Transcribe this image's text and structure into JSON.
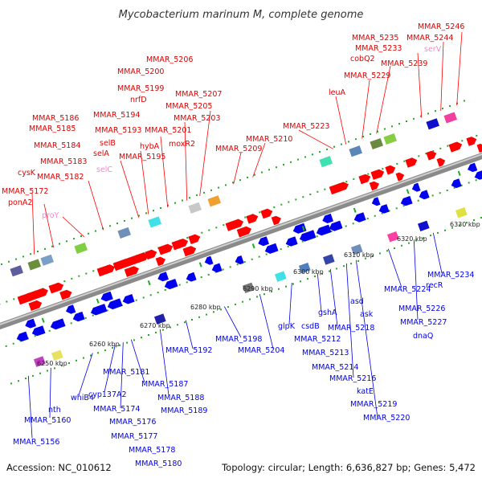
{
  "title": "Mycobacterium marinum M, complete genome",
  "footer": {
    "accession": "Accession: NC_010612",
    "summary": "Topology: circular; Length: 6,636,827 bp; Genes: 5,472"
  },
  "colors": {
    "forward_gene": "#ff0000",
    "reverse_gene": "#0000ee",
    "rna_gene": "#ff88cc",
    "backbone": "#999999",
    "tick": "#22aa22"
  },
  "ticks": [
    "6250 kbp",
    "6260 kbp",
    "6270 kbp",
    "6280 kbp",
    "6290 kbp",
    "6300 kbp",
    "6310 kbp",
    "6320 kbp",
    "6330 kbp"
  ],
  "labels_top": [
    "MMAR_5172",
    "ponA2",
    "proY",
    "cysK",
    "MMAR_5182",
    "MMAR_5183",
    "MMAR_5184",
    "MMAR_5185",
    "MMAR_5186",
    "selC",
    "selA",
    "selB",
    "MMAR_5193",
    "MMAR_5194",
    "MMAR_5195",
    "hybA",
    "MMAR_5199",
    "nrfD",
    "MMAR_5200",
    "MMAR_5201",
    "MMAR_5206",
    "moxR2",
    "MMAR_5203",
    "MMAR_5205",
    "MMAR_5207",
    "MMAR_5209",
    "MMAR_5210",
    "MMAR_5223",
    "leuA",
    "MMAR_5229",
    "cobQ2",
    "MMAR_5233",
    "MMAR_5235",
    "MMAR_5239",
    "serV",
    "MMAR_5244",
    "MMAR_5246"
  ],
  "labels_bottom": [
    "MMAR_5156",
    "MMAR_5160",
    "nth",
    "whiB4",
    "cyp137A2",
    "MMAR_5174",
    "MMAR_5176",
    "MMAR_5177",
    "MMAR_5178",
    "MMAR_5180",
    "MMAR_5181",
    "MMAR_5187",
    "MMAR_5188",
    "MMAR_5189",
    "MMAR_5192",
    "MMAR_5198",
    "MMAR_5204",
    "glpK",
    "csdB",
    "gshA",
    "MMAR_5212",
    "MMAR_5213",
    "MMAR_5214",
    "MMAR_5216",
    "katE",
    "MMAR_5219",
    "MMAR_5220",
    "MMAR_5218",
    "asd",
    "ask",
    "MMAR_5224",
    "MMAR_5226",
    "MMAR_5227",
    "dnaQ",
    "recR",
    "MMAR_5234"
  ]
}
